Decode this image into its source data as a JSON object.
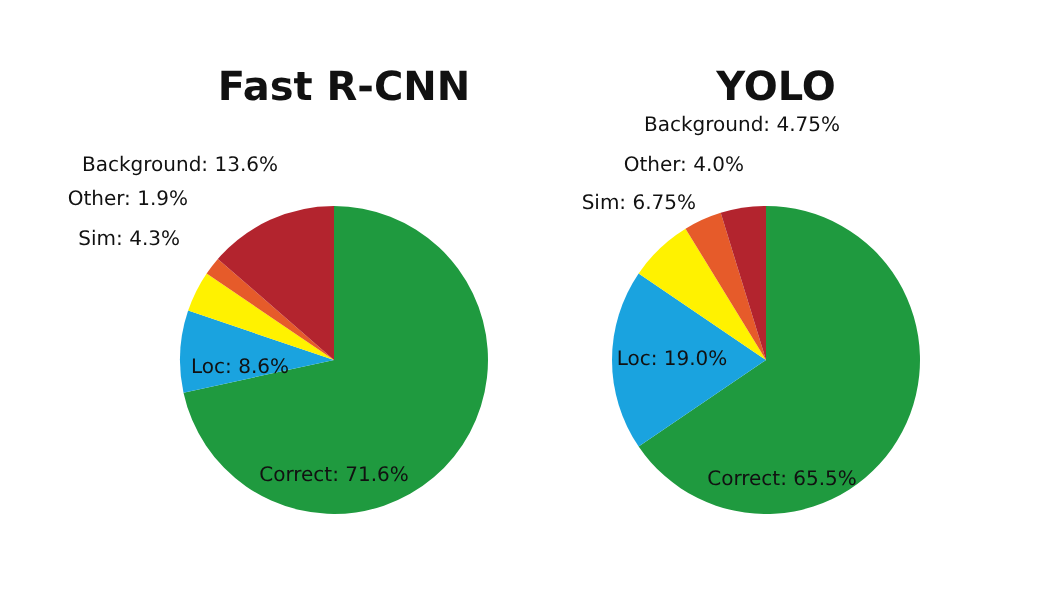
{
  "chart_data": [
    {
      "type": "pie",
      "title": "Fast R-CNN",
      "categories": [
        "Correct",
        "Loc",
        "Sim",
        "Other",
        "Background"
      ],
      "values": [
        71.6,
        8.6,
        4.3,
        1.9,
        13.6
      ],
      "value_labels": [
        "71.6%",
        "8.6%",
        "4.3%",
        "1.9%",
        "13.6%"
      ],
      "colors": [
        "#1f9a3f",
        "#1aa3df",
        "#fff200",
        "#e65b2a",
        "#b3242e"
      ],
      "legend": false
    },
    {
      "type": "pie",
      "title": "YOLO",
      "categories": [
        "Correct",
        "Loc",
        "Sim",
        "Other",
        "Background"
      ],
      "values": [
        65.5,
        19.0,
        6.75,
        4.0,
        4.75
      ],
      "value_labels": [
        "65.5%",
        "19.0%",
        "6.75%",
        "4.0%",
        "4.75%"
      ],
      "colors": [
        "#1f9a3f",
        "#1aa3df",
        "#fff200",
        "#e65b2a",
        "#b3242e"
      ],
      "legend": false
    }
  ]
}
